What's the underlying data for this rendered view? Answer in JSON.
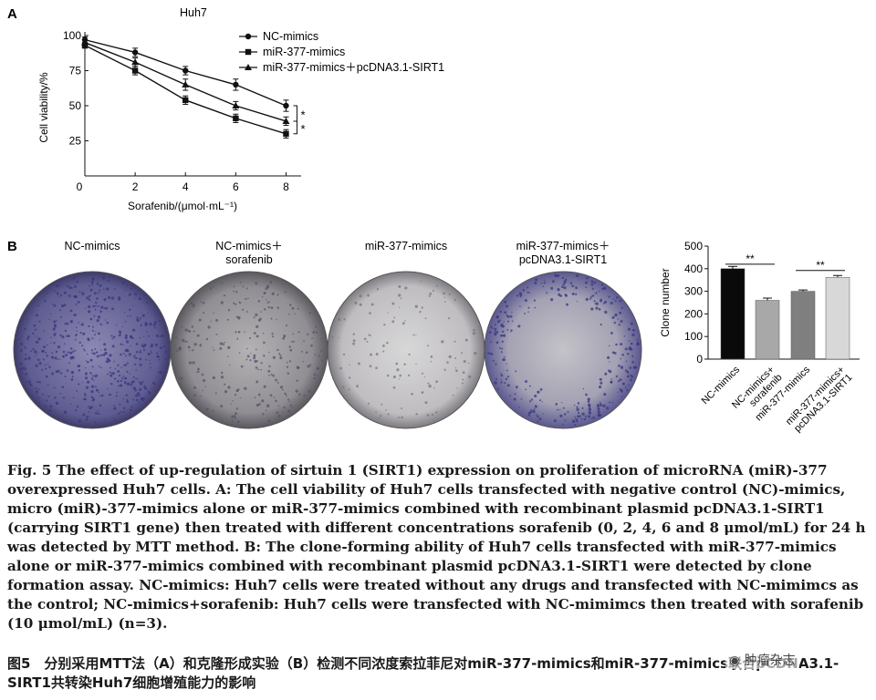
{
  "panel_a_label": "A",
  "panel_b_label": "B",
  "chart_data": [
    {
      "type": "line",
      "title": "Huh7",
      "xlabel": "Sorafenib/(μmol·mL⁻¹)",
      "ylabel": "Cell viability/%",
      "x": [
        0,
        2,
        4,
        6,
        8
      ],
      "xticks": [
        "0",
        "2",
        "4",
        "6",
        "8"
      ],
      "yticks": [
        "25",
        "50",
        "75",
        "100"
      ],
      "xlim": [
        0,
        8.6
      ],
      "ylim": [
        0,
        100
      ],
      "series": [
        {
          "name": "NC-mimics",
          "marker": "circle",
          "values": [
            97,
            88,
            75,
            65,
            50
          ],
          "err": [
            2,
            3,
            3,
            4,
            4
          ]
        },
        {
          "name": "miR-377-mimics",
          "marker": "square",
          "values": [
            93,
            75,
            54,
            41,
            30
          ],
          "err": [
            2,
            3,
            3,
            3,
            3
          ]
        },
        {
          "name": "miR-377-mimics＋pcDNA3.1-SIRT1",
          "marker": "triangle",
          "values": [
            95,
            81,
            65,
            50,
            39
          ],
          "err": [
            2,
            3,
            4,
            3,
            3
          ]
        }
      ],
      "significance": [
        "*",
        "*"
      ]
    },
    {
      "type": "bar",
      "ylabel": "Clone number",
      "categories": [
        "NC-mimics",
        "NC-mimics+\nsorafenib",
        "miR-377-mimics",
        "miR-377-mimics+\npcDNA3.1-SIRT1"
      ],
      "values": [
        400,
        260,
        300,
        362
      ],
      "err": [
        10,
        10,
        6,
        8
      ],
      "yticks": [
        "0",
        "100",
        "200",
        "300",
        "400",
        "500"
      ],
      "ylim": [
        0,
        500
      ],
      "bar_colors": [
        "#0a0a0a",
        "#a8a8a8",
        "#7f7f7f",
        "#d8d8d8"
      ],
      "significance": [
        "**",
        "**"
      ]
    }
  ],
  "plates": [
    {
      "label": "NC-mimics",
      "density": "dense",
      "tint": "#6d6a9c"
    },
    {
      "label": "NC-mimics＋\nsorafenib",
      "density": "medium",
      "tint": "#9c9a9c"
    },
    {
      "label": "miR-377-mimics",
      "density": "sparse",
      "tint": "#c9c7c9"
    },
    {
      "label": "miR-377-mimics＋\npcDNA3.1-SIRT1",
      "density": "ring",
      "tint": "#a8a7b2"
    }
  ],
  "caption_en": "Fig. 5    The effect of up-regulation of sirtuin 1 (SIRT1) expression on proliferation of microRNA (miR)-377 overexpressed Huh7 cells. A: The cell viability of Huh7 cells transfected with negative control (NC)-mimics, micro (miR)-377-mimics alone or miR-377-mimics combined with recombinant plasmid pcDNA3.1-SIRT1 (carrying SIRT1 gene) then treated with different concentrations sorafenib (0, 2, 4, 6 and 8 μmol/mL) for 24 h was detected by MTT method. B: The clone-forming ability of Huh7 cells transfected with miR-377-mimics alone or miR-377-mimics combined with recombinant plasmid pcDNA3.1-SIRT1 were detected by clone formation assay. NC-mimics: Huh7 cells were treated without any drugs and transfected with NC-mimimcs as the control; NC-mimics+sorafenib: Huh7 cells were transfected with NC-mimimcs then treated with sorafenib (10 μmol/mL) (n=3).",
  "caption_cn": "图5　分别采用MTT法（A）和克隆形成实验（B）检测不同浓度索拉菲尼对miR-377-mimics和miR-377-mimics联合pCDNA3.1-SIRT1共转染Huh7细胞增殖能力的影响",
  "watermark": "肿瘤杂志"
}
